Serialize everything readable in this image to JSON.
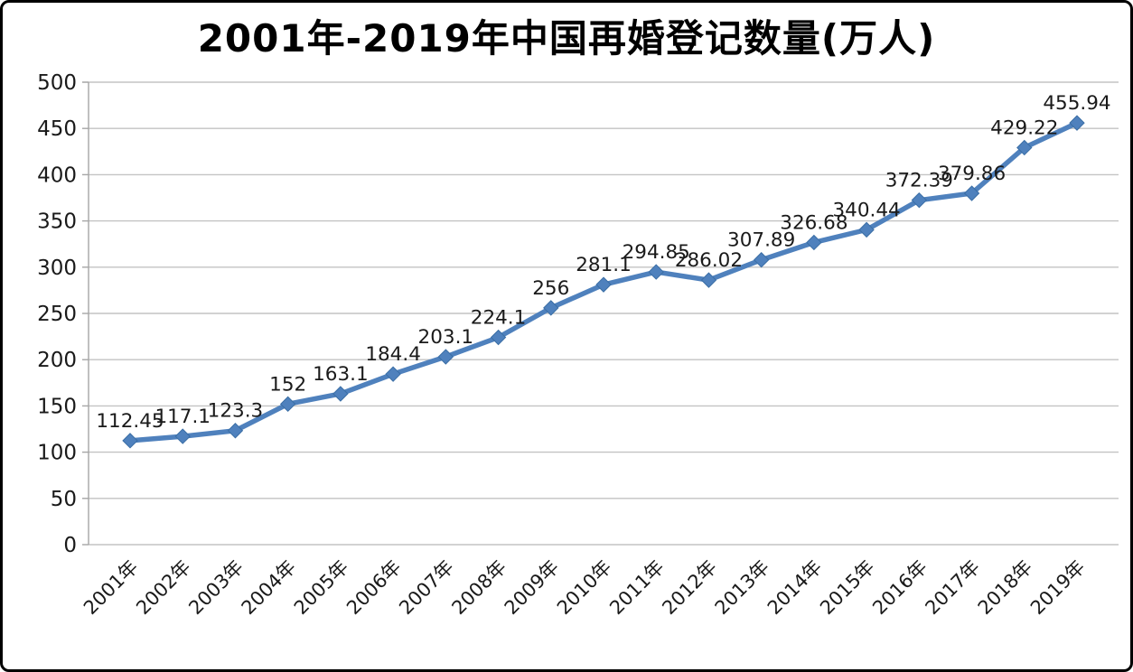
{
  "chart_data": {
    "type": "line",
    "title": "2001年-2019年中国再婚登记数量(万人)",
    "categories": [
      "2001年",
      "2002年",
      "2003年",
      "2004年",
      "2005年",
      "2006年",
      "2007年",
      "2008年",
      "2009年",
      "2010年",
      "2011年",
      "2012年",
      "2013年",
      "2014年",
      "2015年",
      "2016年",
      "2017年",
      "2018年",
      "2019年"
    ],
    "values": [
      112.45,
      117.1,
      123.3,
      152,
      163.1,
      184.4,
      203.1,
      224.1,
      256,
      281.1,
      294.85,
      286.02,
      307.89,
      326.68,
      340.44,
      372.39,
      379.86,
      429.22,
      455.94
    ],
    "point_labels": [
      "112.45",
      "117.1",
      "123.3",
      "152",
      "163.1",
      "184.4",
      "203.1",
      "224.1",
      "256",
      "281.1",
      "294.85",
      "286.02",
      "307.89",
      "326.68",
      "340.44",
      "372.39",
      "379.86",
      "429.22",
      "455.94"
    ],
    "xlabel": "",
    "ylabel": "",
    "ylim": [
      0,
      500
    ],
    "ytick_step": 50,
    "y_tick_labels": [
      "0",
      "50",
      "100",
      "150",
      "200",
      "250",
      "300",
      "350",
      "400",
      "450",
      "500"
    ],
    "grid": true,
    "legend": false,
    "colors": {
      "line": "#4f81bd",
      "marker": "#4f81bd",
      "marker_edge": "#3a6ea5",
      "grid": "#c3c3c3",
      "axis": "#a6a6a6",
      "point_label": "#1a1a1a",
      "tick_label": "#1a1a1a",
      "title": "#000000"
    }
  }
}
